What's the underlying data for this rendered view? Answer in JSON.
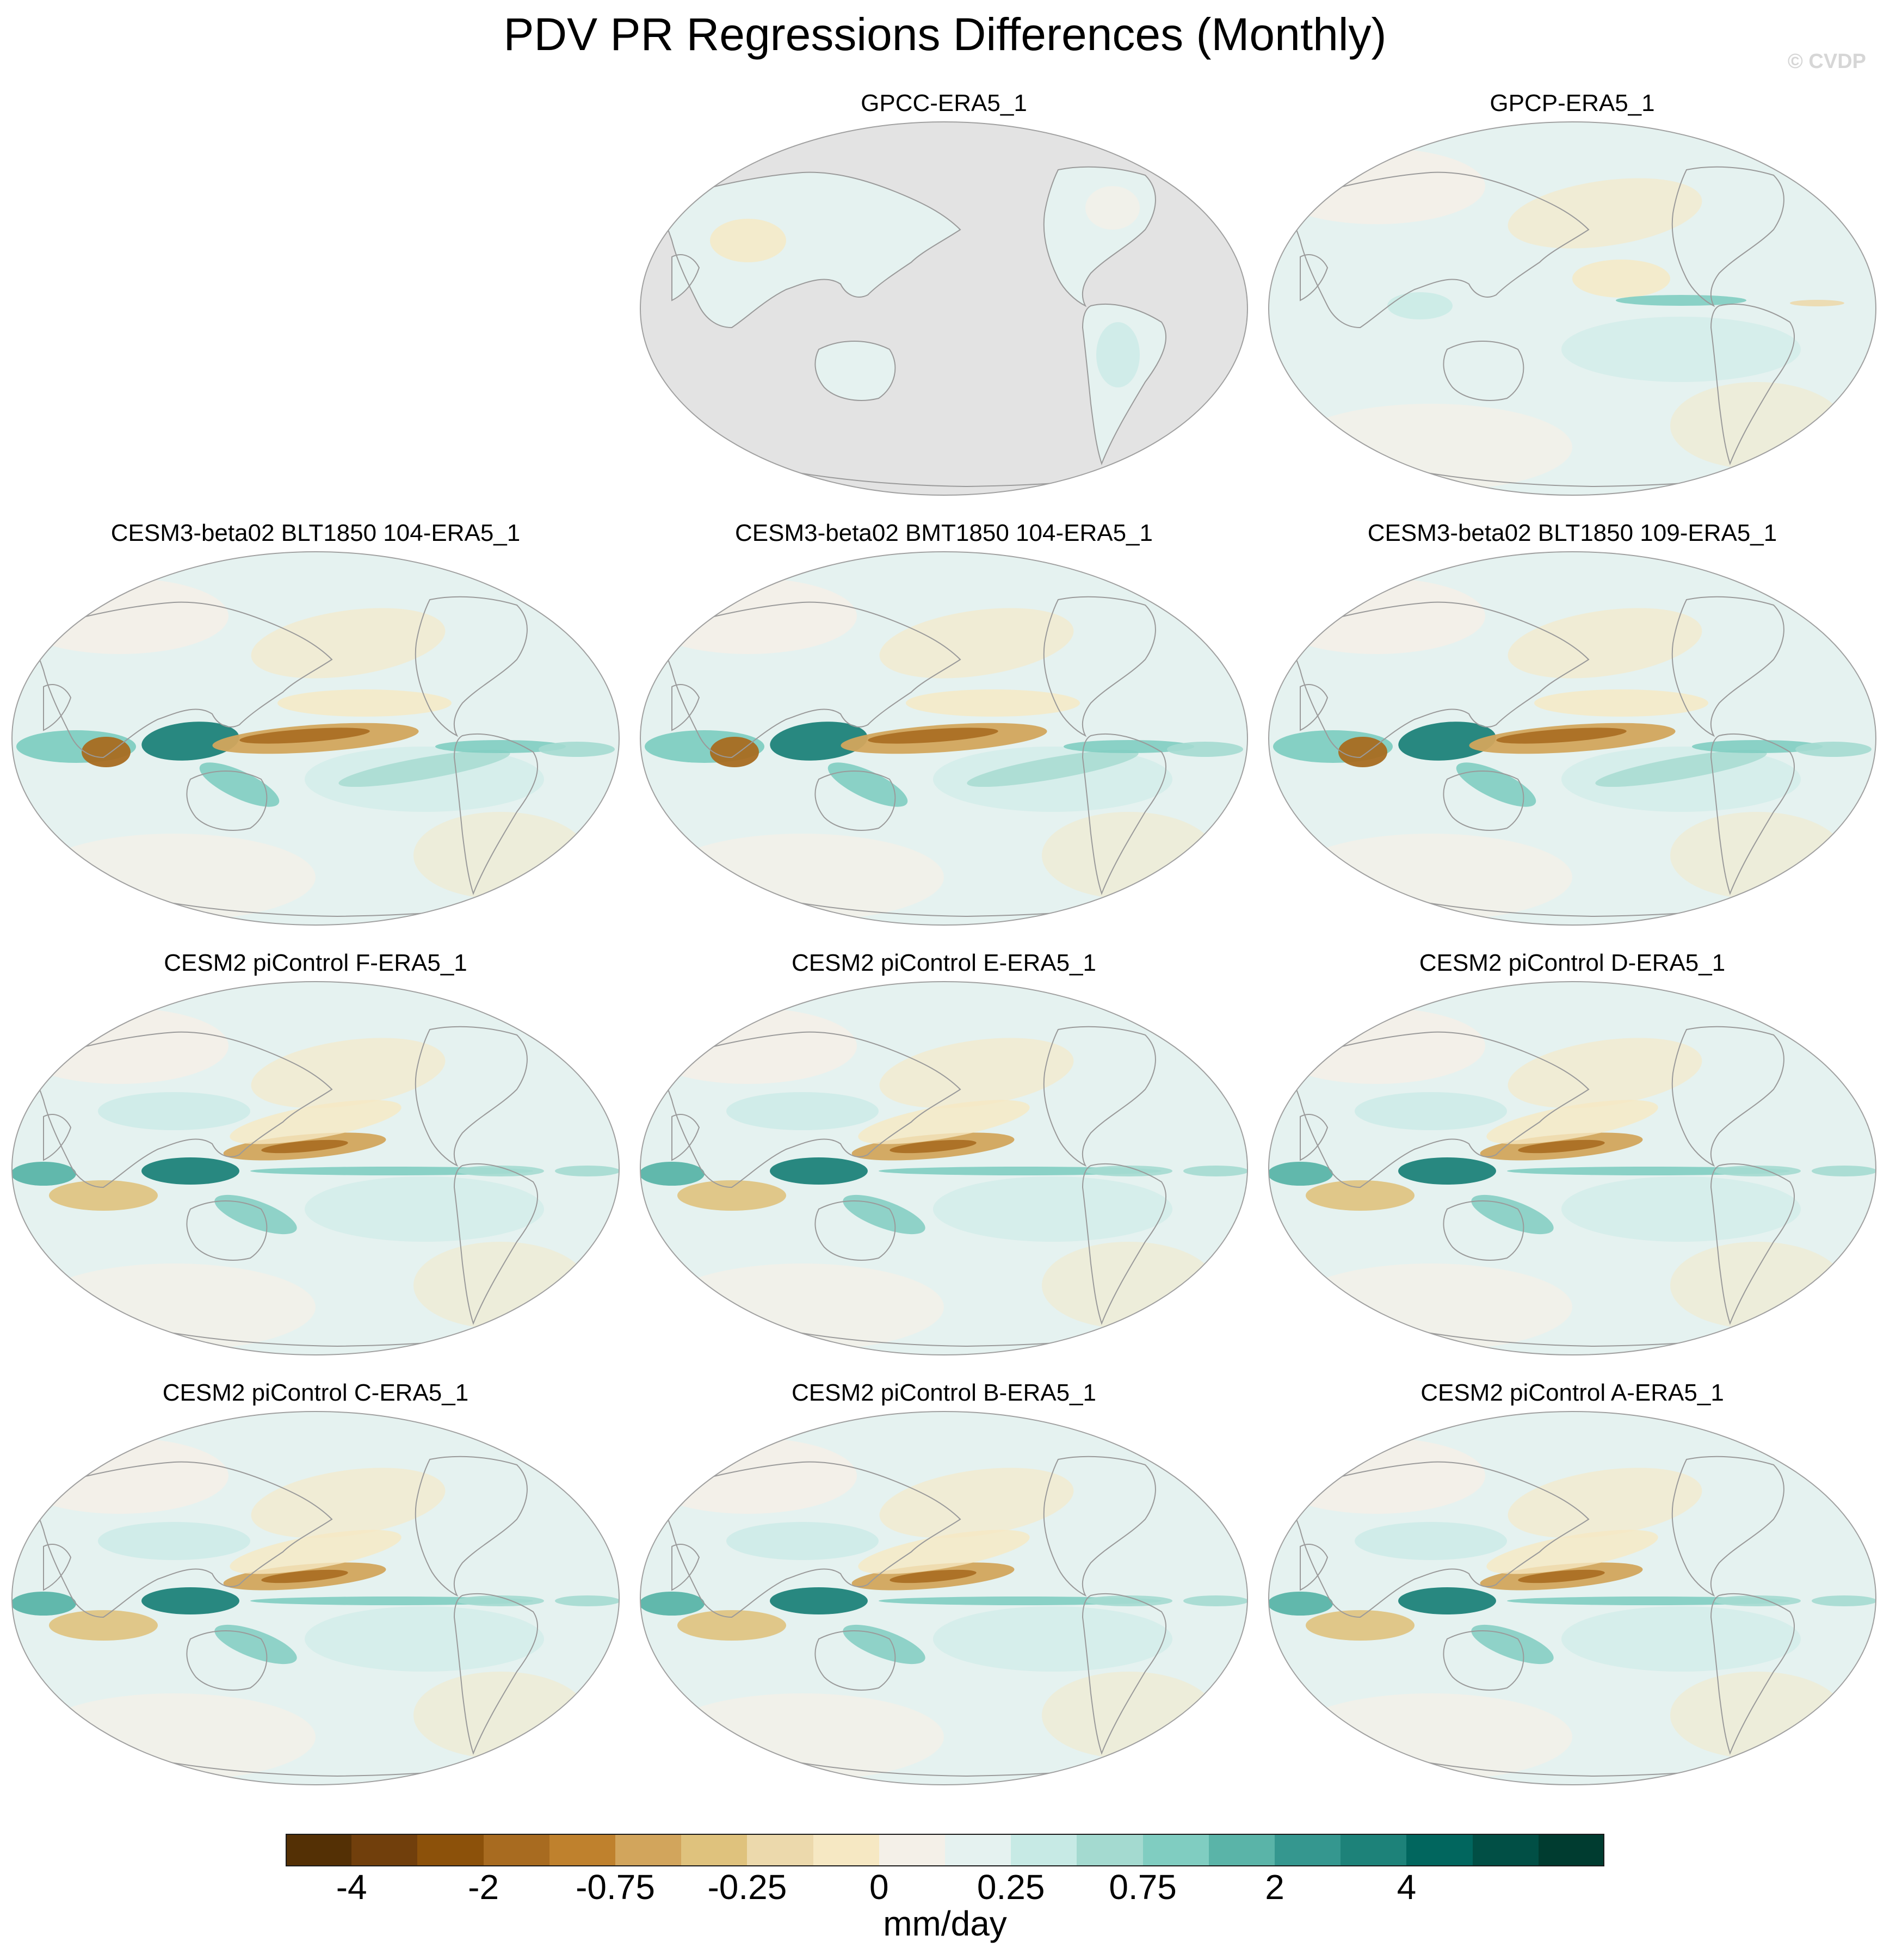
{
  "title": "PDV PR Regressions Differences (Monthly)",
  "watermark": "© CVDP",
  "chart_data": {
    "type": "heatmap",
    "projection": "Robinson, Pacific-centered",
    "variable": "Precipitation regression on PDV (difference vs ERA5_1)",
    "units": "mm/day",
    "panels": [
      {
        "label": "GPCC-ERA5_1",
        "pattern": "land-only, weak"
      },
      {
        "label": "GPCP-ERA5_1",
        "pattern": "weak, equatorial Atlantic/eastern Pacific wet"
      },
      {
        "label": "CESM3-beta02 BLT1850 104-ERA5_1",
        "pattern": "west Pacific wet, central Pacific dry"
      },
      {
        "label": "CESM3-beta02 BMT1850 104-ERA5_1",
        "pattern": "west Pacific wet, central Pacific dry"
      },
      {
        "label": "CESM3-beta02 BLT1850 109-ERA5_1",
        "pattern": "west Pacific wet, central Pacific dry"
      },
      {
        "label": "CESM2 piControl F-ERA5_1",
        "pattern": "west Pacific wet, north central Pacific dry"
      },
      {
        "label": "CESM2 piControl E-ERA5_1",
        "pattern": "west Pacific wet, north central Pacific dry"
      },
      {
        "label": "CESM2 piControl D-ERA5_1",
        "pattern": "west Pacific wet, north central Pacific dry"
      },
      {
        "label": "CESM2 piControl C-ERA5_1",
        "pattern": "west Pacific wet, north central Pacific dry"
      },
      {
        "label": "CESM2 piControl B-ERA5_1",
        "pattern": "west Pacific wet, north central Pacific dry"
      },
      {
        "label": "CESM2 piControl A-ERA5_1",
        "pattern": "west Pacific wet, north central Pacific dry"
      }
    ],
    "colorbar": {
      "units": "mm/day",
      "levels": [
        -5,
        -4,
        -3,
        -2,
        -1,
        -0.75,
        -0.5,
        -0.25,
        -0.1,
        0,
        0.1,
        0.25,
        0.5,
        0.75,
        1,
        2,
        3,
        4,
        5
      ],
      "tick_labels": [
        "-4",
        "-2",
        "-0.75",
        "-0.25",
        "0",
        "0.25",
        "0.75",
        "2",
        "4"
      ],
      "colors": [
        "#543005",
        "#713f0c",
        "#8c510a",
        "#a86b20",
        "#bf812d",
        "#d2a55c",
        "#dfc27d",
        "#ecd9ac",
        "#f6e8c3",
        "#f4f0e8",
        "#e5f2f0",
        "#c7eae5",
        "#a4dad0",
        "#80cdc1",
        "#5ab4a8",
        "#35978f",
        "#1d8279",
        "#01665e",
        "#014f45",
        "#003c30"
      ]
    }
  },
  "colors": {
    "land_fill": "#e3e3e3",
    "coast": "#9a9a9a",
    "map_border": "#a0a0a0"
  }
}
